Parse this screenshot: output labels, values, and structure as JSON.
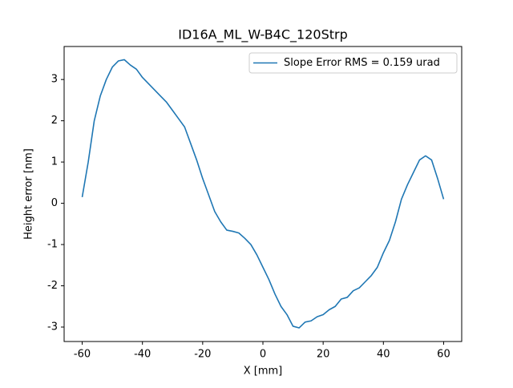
{
  "chart_data": {
    "type": "line",
    "title": "ID16A_ML_W-B4C_120Strp",
    "x_label": "X [mm]",
    "y_label": "Height error [nm]",
    "x": [
      -60,
      -58,
      -56,
      -54,
      -52,
      -50,
      -48,
      -46,
      -44,
      -42,
      -40,
      -38,
      -36,
      -34,
      -32,
      -30,
      -28,
      -26,
      -24,
      -22,
      -20,
      -18,
      -16,
      -14,
      -12,
      -10,
      -8,
      -6,
      -4,
      -2,
      0,
      2,
      4,
      6,
      8,
      10,
      12,
      14,
      16,
      18,
      20,
      22,
      24,
      26,
      28,
      30,
      32,
      34,
      36,
      38,
      40,
      42,
      44,
      46,
      48,
      50,
      52,
      54,
      56,
      58,
      60
    ],
    "series": [
      {
        "name": "Slope Error RMS = 0.159 urad",
        "color": "#1f77b4",
        "values": [
          0.15,
          1.0,
          2.0,
          2.6,
          3.0,
          3.3,
          3.45,
          3.48,
          3.35,
          3.25,
          3.05,
          2.9,
          2.75,
          2.6,
          2.45,
          2.25,
          2.05,
          1.85,
          1.45,
          1.05,
          0.6,
          0.2,
          -0.2,
          -0.45,
          -0.65,
          -0.68,
          -0.72,
          -0.85,
          -1.0,
          -1.25,
          -1.55,
          -1.85,
          -2.2,
          -2.5,
          -2.7,
          -2.98,
          -3.02,
          -2.88,
          -2.85,
          -2.75,
          -2.7,
          -2.58,
          -2.5,
          -2.32,
          -2.28,
          -2.12,
          -2.05,
          -1.9,
          -1.75,
          -1.55,
          -1.2,
          -0.9,
          -0.45,
          0.1,
          0.45,
          0.75,
          1.05,
          1.15,
          1.05,
          0.6,
          0.1
        ]
      }
    ],
    "xlim": [
      -66,
      66
    ],
    "ylim": [
      -3.35,
      3.8
    ],
    "xticks": [
      -60,
      -40,
      -20,
      0,
      20,
      40,
      60
    ],
    "yticks": [
      -3,
      -2,
      -1,
      0,
      1,
      2,
      3
    ],
    "grid": false,
    "legend": "upper right"
  }
}
